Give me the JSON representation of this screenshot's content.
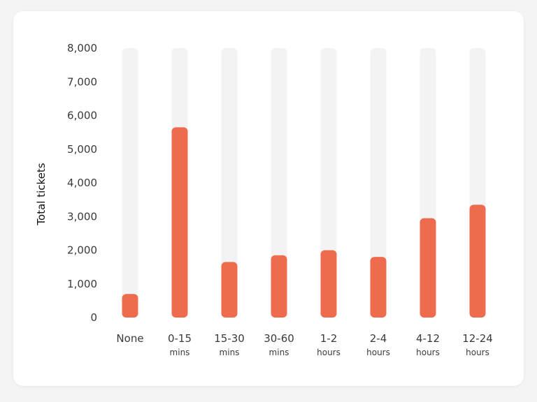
{
  "chart_data": {
    "type": "bar",
    "title": "",
    "xlabel": "",
    "ylabel": "Total tickets",
    "ylim": [
      0,
      8000
    ],
    "y_ticks": [
      "0",
      "1,000",
      "2,000",
      "3,000",
      "4,000",
      "5,000",
      "6,000",
      "7,000",
      "8,000"
    ],
    "categories": [
      {
        "label": "None",
        "sub": ""
      },
      {
        "label": "0-15",
        "sub": "mins"
      },
      {
        "label": "15-30",
        "sub": "mins"
      },
      {
        "label": "30-60",
        "sub": "mins"
      },
      {
        "label": "1-2",
        "sub": "hours"
      },
      {
        "label": "2-4",
        "sub": "hours"
      },
      {
        "label": "4-12",
        "sub": "hours"
      },
      {
        "label": "12-24",
        "sub": "hours"
      }
    ],
    "values": [
      700,
      5650,
      1650,
      1850,
      2000,
      1800,
      2950,
      3350
    ],
    "grid": false,
    "colors": {
      "bar": "#ee6b4d",
      "track": "#f3f3f3"
    }
  }
}
